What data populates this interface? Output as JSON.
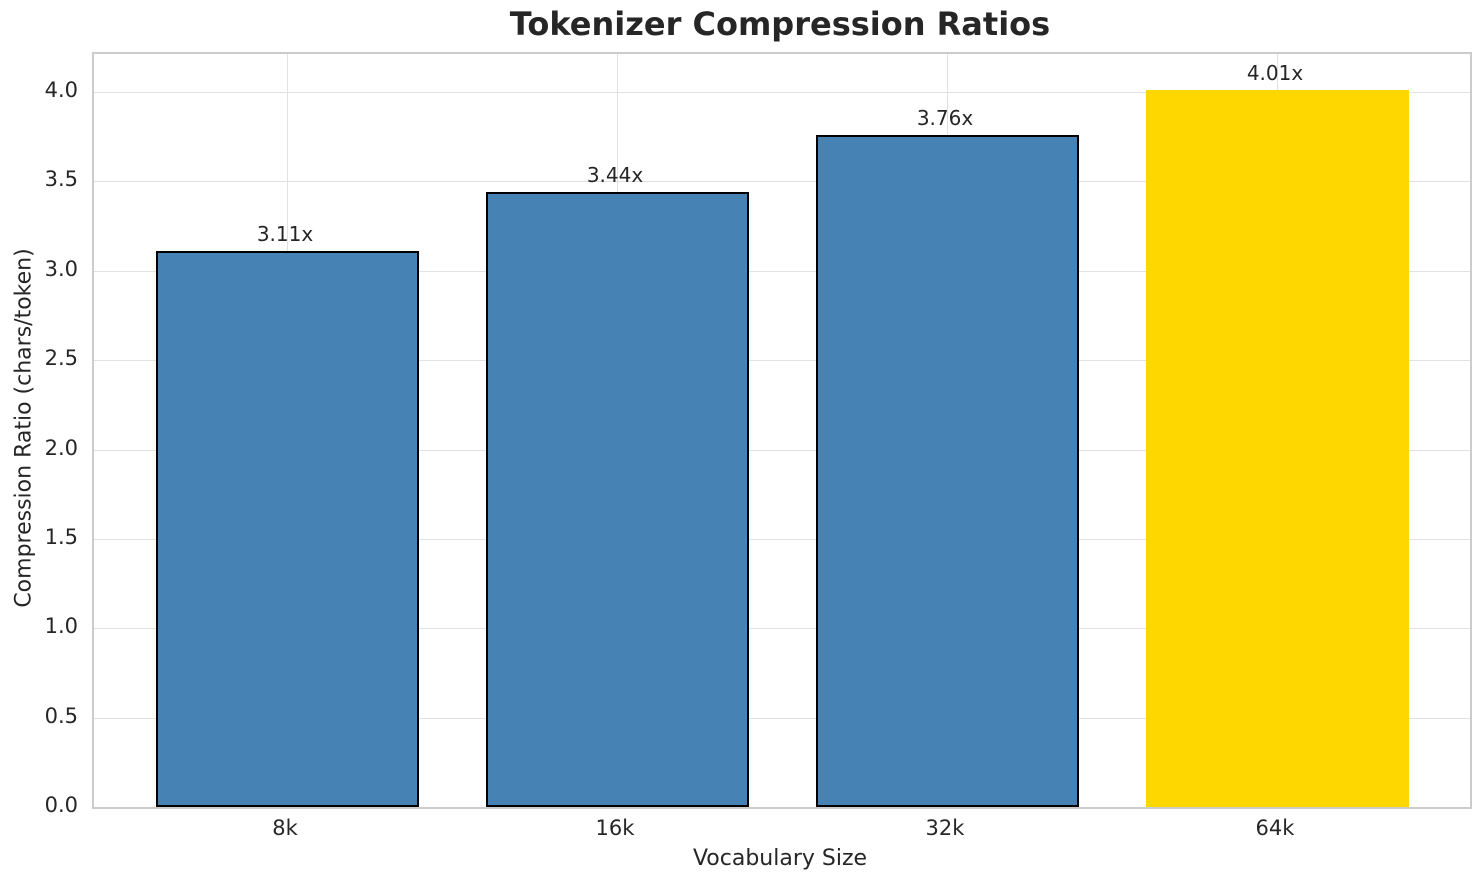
{
  "chart_data": {
    "type": "bar",
    "title": "Tokenizer Compression Ratios",
    "xlabel": "Vocabulary Size",
    "ylabel": "Compression Ratio (chars/token)",
    "categories": [
      "8k",
      "16k",
      "32k",
      "64k"
    ],
    "values": [
      3.11,
      3.44,
      3.76,
      4.01
    ],
    "bar_labels": [
      "3.11x",
      "3.44x",
      "3.76x",
      "4.01x"
    ],
    "bar_colors": [
      "#4682B4",
      "#4682B4",
      "#4682B4",
      "#FFD700"
    ],
    "bar_edge_colors": [
      "#000000",
      "#000000",
      "#000000",
      "none"
    ],
    "ylim": [
      0.0,
      4.21
    ],
    "yticks": [
      0.0,
      0.5,
      1.0,
      1.5,
      2.0,
      2.5,
      3.0,
      3.5,
      4.0
    ],
    "ytick_labels": [
      "0.0",
      "0.5",
      "1.0",
      "1.5",
      "2.0",
      "2.5",
      "3.0",
      "3.5",
      "4.0"
    ],
    "grid": "both",
    "legend": "none",
    "colors": {
      "grid": "#e1e1e1",
      "spine": "#cccccc",
      "text": "#262626",
      "background": "#ffffff",
      "accent_bar": "#FFD700",
      "default_bar": "#4682B4"
    }
  }
}
